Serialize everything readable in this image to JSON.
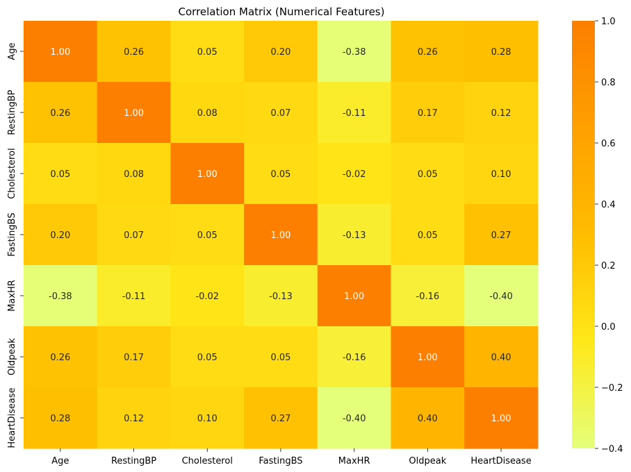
{
  "chart_data": {
    "type": "heatmap",
    "title": "Correlation Matrix (Numerical Features)",
    "xlabel": "",
    "ylabel": "",
    "x_labels": [
      "Age",
      "RestingBP",
      "Cholesterol",
      "FastingBS",
      "MaxHR",
      "Oldpeak",
      "HeartDisease"
    ],
    "y_labels": [
      "Age",
      "RestingBP",
      "Cholesterol",
      "FastingBS",
      "MaxHR",
      "Oldpeak",
      "HeartDisease"
    ],
    "values": [
      [
        1.0,
        0.26,
        0.05,
        0.2,
        -0.38,
        0.26,
        0.28
      ],
      [
        0.26,
        1.0,
        0.08,
        0.07,
        -0.11,
        0.17,
        0.12
      ],
      [
        0.05,
        0.08,
        1.0,
        0.05,
        -0.02,
        0.05,
        0.1
      ],
      [
        0.2,
        0.07,
        0.05,
        1.0,
        -0.13,
        0.05,
        0.27
      ],
      [
        -0.38,
        -0.11,
        -0.02,
        -0.13,
        1.0,
        -0.16,
        -0.4
      ],
      [
        0.26,
        0.17,
        0.05,
        0.05,
        -0.16,
        1.0,
        0.4
      ],
      [
        0.28,
        0.12,
        0.1,
        0.27,
        -0.4,
        0.4,
        1.0
      ]
    ],
    "value_format": "2 decimals",
    "colormap": "Wistia",
    "colorbar": {
      "range": [
        -0.4,
        1.0
      ],
      "ticks": [
        -0.4,
        -0.2,
        0.0,
        0.2,
        0.4,
        0.6,
        0.8,
        1.0
      ],
      "tick_labels": [
        "−0.4",
        "−0.2",
        "0.0",
        "0.2",
        "0.4",
        "0.6",
        "0.8",
        "1.0"
      ],
      "stops": [
        "#e4ff7a",
        "#ffe81a",
        "#ffbd00",
        "#ffa000",
        "#fc7f00"
      ]
    },
    "annotation_colors": {
      "light_text": "#ffffff",
      "dark_text": "#262626"
    },
    "grid": false,
    "legend": "colorbar-right"
  }
}
